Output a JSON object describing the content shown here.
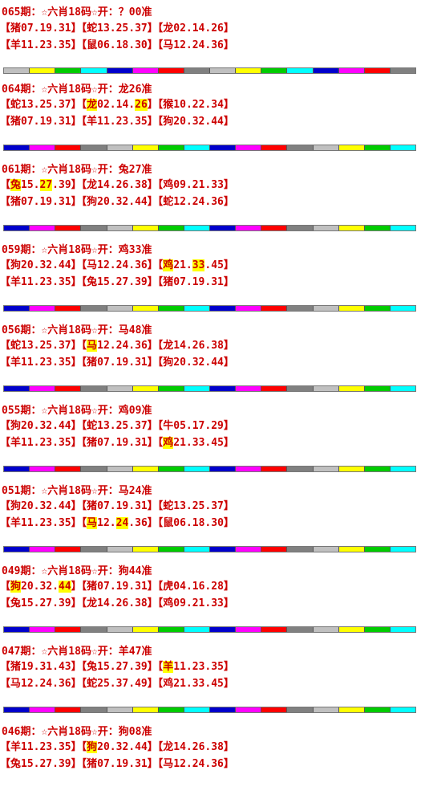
{
  "stripe_colors": [
    "#0000cc",
    "#ff00ff",
    "#ff0000",
    "#808080",
    "#c0c0c0",
    "#ffff00",
    "#00cc00",
    "#00ffff",
    "#0000cc",
    "#ff00ff",
    "#ff0000",
    "#808080",
    "#c0c0c0",
    "#ffff00",
    "#00cc00",
    "#00ffff"
  ],
  "stripe_colors_alt": [
    "#c0c0c0",
    "#ffff00",
    "#00cc00",
    "#00ffff",
    "#0000cc",
    "#ff00ff",
    "#ff0000",
    "#808080",
    "#c0c0c0",
    "#ffff00",
    "#00cc00",
    "#00ffff",
    "#0000cc",
    "#ff00ff",
    "#ff0000",
    "#808080"
  ],
  "entries": [
    {
      "title": "065期：☆六肖18码☆开：？00准",
      "rows": [
        [
          {
            "t": "【猪07.19.31】"
          },
          {
            "t": "【蛇13.25.37】"
          },
          {
            "t": "【龙02.14.26】"
          }
        ],
        [
          {
            "t": "【羊11.23.35】"
          },
          {
            "t": "【鼠06.18.30】"
          },
          {
            "t": "【马12.24.36】"
          }
        ]
      ]
    },
    {
      "title": "064期：☆六肖18码☆开：龙26准",
      "rows": [
        [
          {
            "t": "【蛇13.25.37】"
          },
          {
            "t": "【"
          },
          {
            "h": "龙"
          },
          {
            "t": "02.14."
          },
          {
            "h": "26"
          },
          {
            "t": "】"
          },
          {
            "t": "【猴10.22.34】"
          }
        ],
        [
          {
            "t": "【猪07.19.31】"
          },
          {
            "t": "【羊11.23.35】"
          },
          {
            "t": "【狗20.32.44】"
          }
        ]
      ]
    },
    {
      "title": "061期：☆六肖18码☆开：兔27准",
      "rows": [
        [
          {
            "t": "【"
          },
          {
            "h": "兔"
          },
          {
            "t": "15."
          },
          {
            "h": "27"
          },
          {
            "t": ".39】"
          },
          {
            "t": "【龙14.26.38】"
          },
          {
            "t": "【鸡09.21.33】"
          }
        ],
        [
          {
            "t": "【猪07.19.31】"
          },
          {
            "t": "【狗20.32.44】"
          },
          {
            "t": "【蛇12.24.36】"
          }
        ]
      ]
    },
    {
      "title": "059期：☆六肖18码☆开：鸡33准",
      "rows": [
        [
          {
            "t": "【狗20.32.44】"
          },
          {
            "t": "【马12.24.36】"
          },
          {
            "t": "【"
          },
          {
            "h": "鸡"
          },
          {
            "t": "21."
          },
          {
            "h": "33"
          },
          {
            "t": ".45】"
          }
        ],
        [
          {
            "t": "【羊11.23.35】"
          },
          {
            "t": "【兔15.27.39】"
          },
          {
            "t": "【猪07.19.31】"
          }
        ]
      ]
    },
    {
      "title": "056期：☆六肖18码☆开：马48准",
      "rows": [
        [
          {
            "t": "【蛇13.25.37】"
          },
          {
            "t": "【"
          },
          {
            "h": "马"
          },
          {
            "t": "12.24.36】"
          },
          {
            "t": "【龙14.26.38】"
          }
        ],
        [
          {
            "t": "【羊11.23.35】"
          },
          {
            "t": "【猪07.19.31】"
          },
          {
            "t": "【狗20.32.44】"
          }
        ]
      ]
    },
    {
      "title": "055期：☆六肖18码☆开：鸡09准",
      "rows": [
        [
          {
            "t": "【狗20.32.44】"
          },
          {
            "t": "【蛇13.25.37】"
          },
          {
            "t": "【牛05.17.29】"
          }
        ],
        [
          {
            "t": "【羊11.23.35】"
          },
          {
            "t": "【猪07.19.31】"
          },
          {
            "t": "【"
          },
          {
            "h": "鸡"
          },
          {
            "t": "21.33.45】"
          }
        ]
      ]
    },
    {
      "title": "051期：☆六肖18码☆开：马24准",
      "rows": [
        [
          {
            "t": "【狗20.32.44】"
          },
          {
            "t": "【猪07.19.31】"
          },
          {
            "t": "【蛇13.25.37】"
          }
        ],
        [
          {
            "t": "【羊11.23.35】"
          },
          {
            "t": "【"
          },
          {
            "h": "马"
          },
          {
            "t": "12."
          },
          {
            "h": "24"
          },
          {
            "t": ".36】"
          },
          {
            "t": "【鼠06.18.30】"
          }
        ]
      ]
    },
    {
      "title": "049期：☆六肖18码☆开：狗44准",
      "rows": [
        [
          {
            "t": "【"
          },
          {
            "h": "狗"
          },
          {
            "t": "20.32."
          },
          {
            "h": "44"
          },
          {
            "t": "】"
          },
          {
            "t": "【猪07.19.31】"
          },
          {
            "t": "【虎04.16.28】"
          }
        ],
        [
          {
            "t": "【兔15.27.39】"
          },
          {
            "t": "【龙14.26.38】"
          },
          {
            "t": "【鸡09.21.33】"
          }
        ]
      ]
    },
    {
      "title": "047期：☆六肖18码☆开：羊47准",
      "rows": [
        [
          {
            "t": "【猪19.31.43】"
          },
          {
            "t": "【兔15.27.39】"
          },
          {
            "t": "【"
          },
          {
            "h": "羊"
          },
          {
            "t": "11.23.35】"
          }
        ],
        [
          {
            "t": "【马12.24.36】"
          },
          {
            "t": "【蛇25.37.49】"
          },
          {
            "t": "【鸡21.33.45】"
          }
        ]
      ]
    },
    {
      "title": "046期：☆六肖18码☆开：狗08准",
      "rows": [
        [
          {
            "t": "【羊11.23.35】"
          },
          {
            "t": "【"
          },
          {
            "h": "狗"
          },
          {
            "t": "20.32.44】"
          },
          {
            "t": "【龙14.26.38】"
          }
        ],
        [
          {
            "t": "【兔15.27.39】"
          },
          {
            "t": "【猪07.19.31】"
          },
          {
            "t": "【马12.24.36】"
          }
        ]
      ]
    }
  ]
}
